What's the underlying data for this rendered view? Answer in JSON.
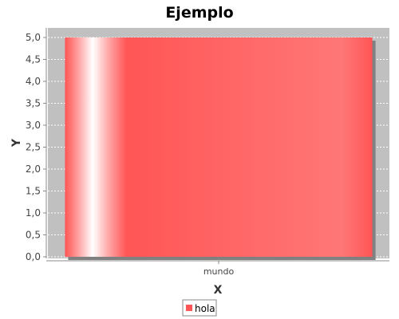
{
  "chart_data": {
    "type": "bar",
    "title": "Ejemplo",
    "xlabel": "X",
    "ylabel": "Y",
    "categories": [
      "mundo"
    ],
    "series": [
      {
        "name": "hola",
        "values": [
          5.0
        ]
      }
    ],
    "ylim": [
      0,
      5.0
    ],
    "yticks": [
      "0,0",
      "0,5",
      "1,0",
      "1,5",
      "2,0",
      "2,5",
      "3,0",
      "3,5",
      "4,0",
      "4,5",
      "5,0"
    ],
    "grid": true,
    "legend_position": "bottom",
    "colors": {
      "bar": "#ff5555",
      "plot_background": "#c0c0c0",
      "gridline": "#ffffff",
      "bar_shadow": "#808080"
    }
  }
}
